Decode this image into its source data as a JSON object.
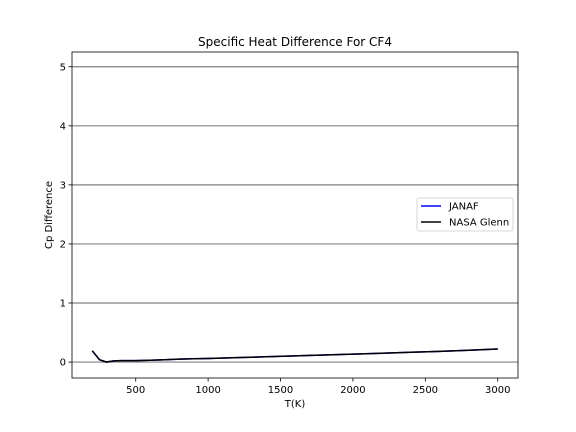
{
  "chart_data": {
    "type": "line",
    "title": "Specific Heat Difference For CF4",
    "xlabel": "T(K)",
    "ylabel": "Cp Difference",
    "xlim": [
      60,
      3140
    ],
    "ylim": [
      -0.27,
      5.25
    ],
    "xticks": [
      500,
      1000,
      1500,
      2000,
      2500,
      3000
    ],
    "yticks": [
      0,
      1,
      2,
      3,
      4,
      5
    ],
    "grid": "y-major",
    "legend_position": "center-right",
    "series": [
      {
        "name": "JANAF",
        "color": "#0000ff",
        "x": [
          200,
          250,
          298.15,
          350,
          400,
          500,
          600,
          700,
          800,
          900,
          1000,
          1200,
          1400,
          1600,
          1800,
          2000,
          2200,
          2400,
          2600,
          2800,
          3000
        ],
        "y": [
          0.19,
          0.04,
          0.0,
          0.02,
          0.025,
          0.025,
          0.03,
          0.04,
          0.05,
          0.055,
          0.06,
          0.075,
          0.09,
          0.105,
          0.12,
          0.135,
          0.15,
          0.165,
          0.18,
          0.2,
          0.22
        ]
      },
      {
        "name": "NASA Glenn",
        "color": "#000000",
        "x": [
          200,
          250,
          298.15,
          350,
          400,
          500,
          600,
          700,
          800,
          900,
          1000,
          1200,
          1400,
          1600,
          1800,
          2000,
          2200,
          2400,
          2600,
          2800,
          3000
        ],
        "y": [
          0.19,
          0.04,
          0.0,
          0.02,
          0.025,
          0.025,
          0.03,
          0.04,
          0.05,
          0.055,
          0.06,
          0.075,
          0.09,
          0.105,
          0.12,
          0.135,
          0.15,
          0.165,
          0.18,
          0.2,
          0.22
        ]
      }
    ]
  }
}
